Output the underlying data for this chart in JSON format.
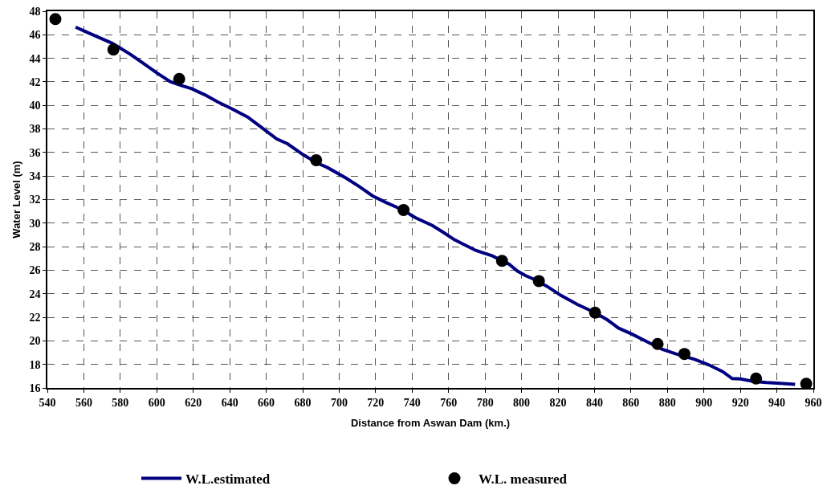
{
  "chart_data": {
    "type": "line",
    "xlabel": "Distance from Aswan Dam (km.)",
    "ylabel": "Water Level (m)",
    "xlim": [
      540,
      960
    ],
    "xticks": [
      540,
      560,
      580,
      600,
      620,
      640,
      660,
      680,
      700,
      720,
      740,
      760,
      780,
      800,
      820,
      840,
      860,
      880,
      900,
      920,
      940,
      960
    ],
    "ylim": [
      16,
      48
    ],
    "yticks": [
      16,
      18,
      20,
      22,
      24,
      26,
      28,
      30,
      32,
      34,
      36,
      38,
      40,
      42,
      44,
      46,
      48
    ],
    "grid": true,
    "legend": "bottom",
    "series": [
      {
        "name": "W.L.estimated",
        "color": "#000080",
        "marker": "none",
        "line_style": "solid",
        "x": [
          555.5,
          560.7,
          569.5,
          575.3,
          579.7,
          585.5,
          592.8,
          600.1,
          607.4,
          613.3,
          619.1,
          626.4,
          633.7,
          641,
          649.8,
          657.1,
          665.8,
          671.7,
          680.4,
          687.7,
          693.6,
          703.8,
          711.1,
          718.4,
          725.7,
          734.5,
          742,
          751.1,
          757.1,
          763.1,
          767.6,
          775.1,
          784.1,
          789.3,
          793.1,
          797.6,
          802.1,
          806.6,
          814.1,
          821.6,
          830.6,
          840.3,
          847.1,
          853.1,
          860.7,
          868.2,
          877.2,
          884.7,
          895.2,
          902.7,
          910.3,
          915.5,
          920,
          926.8,
          934.3,
          941.8,
          950
        ],
        "values": [
          46.65,
          46.29,
          45.69,
          45.3,
          44.9,
          44.34,
          43.55,
          42.76,
          42.02,
          41.7,
          41.42,
          40.9,
          40.27,
          39.73,
          39.01,
          38.16,
          37.15,
          36.74,
          35.8,
          35.12,
          34.72,
          33.82,
          33.1,
          32.31,
          31.75,
          31.15,
          30.45,
          29.8,
          29.22,
          28.6,
          28.25,
          27.67,
          27.21,
          26.8,
          26.52,
          25.94,
          25.55,
          25.25,
          24.62,
          23.86,
          23.1,
          22.4,
          21.78,
          21.09,
          20.56,
          19.98,
          19.28,
          18.89,
          18.42,
          17.96,
          17.39,
          16.8,
          16.76,
          16.57,
          16.46,
          16.4,
          16.3
        ]
      },
      {
        "name": "W.L. measured",
        "type": "scatter",
        "color": "#000000",
        "marker": "circle",
        "x": [
          544.4,
          576.2,
          612.3,
          687.4,
          735.3,
          789.3,
          809.5,
          840.3,
          874.6,
          889.3,
          928.6,
          956.1
        ],
        "values": [
          47.33,
          44.74,
          42.25,
          35.35,
          31.12,
          26.8,
          25.08,
          22.4,
          19.74,
          18.89,
          16.8,
          16.35
        ]
      }
    ]
  }
}
